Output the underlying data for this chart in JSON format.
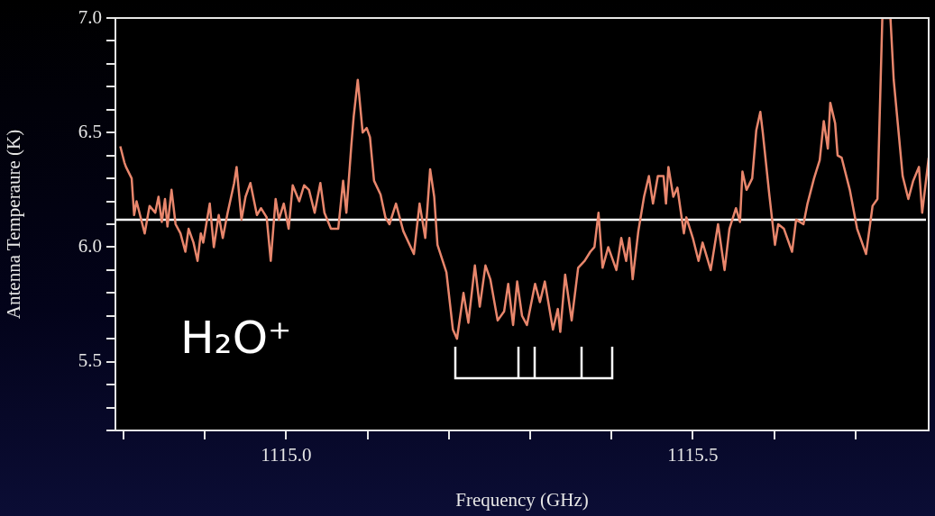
{
  "chart_data": {
    "type": "line",
    "xlabel": "Frequency (GHz)",
    "ylabel": "Antenna Temperaure (K)",
    "annotations": [
      "H₂O⁺"
    ],
    "x": [
      1114.796,
      1114.801,
      1114.803,
      1114.81,
      1114.813,
      1114.816,
      1114.826,
      1114.832,
      1114.839,
      1114.843,
      1114.847,
      1114.851,
      1114.854,
      1114.859,
      1114.864,
      1114.87,
      1114.876,
      1114.88,
      1114.886,
      1114.891,
      1114.895,
      1114.898,
      1114.906,
      1114.911,
      1114.917,
      1114.922,
      1114.928,
      1114.936,
      1114.939,
      1114.945,
      1114.95,
      1114.956,
      1114.964,
      1114.969,
      1114.976,
      1114.981,
      1114.987,
      1114.991,
      1114.997,
      1115.003,
      1115.008,
      1115.016,
      1115.022,
      1115.028,
      1115.035,
      1115.042,
      1115.047,
      1115.055,
      1115.064,
      1115.07,
      1115.074,
      1115.08,
      1115.083,
      1115.088,
      1115.094,
      1115.099,
      1115.103,
      1115.108,
      1115.116,
      1115.122,
      1115.127,
      1115.135,
      1115.144,
      1115.157,
      1115.164,
      1115.171,
      1115.177,
      1115.182,
      1115.186,
      1115.197,
      1115.205,
      1115.21,
      1115.218,
      1115.224,
      1115.232,
      1115.238,
      1115.245,
      1115.251,
      1115.26,
      1115.268,
      1115.273,
      1115.279,
      1115.284,
      1115.29,
      1115.296,
      1115.306,
      1115.312,
      1115.318,
      1115.328,
      1115.334,
      1115.337,
      1115.343,
      1115.351,
      1115.359,
      1115.367,
      1115.374,
      1115.379,
      1115.384,
      1115.389,
      1115.396,
      1115.406,
      1115.412,
      1115.418,
      1115.422,
      1115.426,
      1115.433,
      1115.44,
      1115.446,
      1115.451,
      1115.457,
      1115.464,
      1115.467,
      1115.47,
      1115.476,
      1115.481,
      1115.489,
      1115.492,
      1115.5,
      1115.507,
      1115.512,
      1115.522,
      1115.531,
      1115.539,
      1115.545,
      1115.553,
      1115.558,
      1115.561,
      1115.566,
      1115.573,
      1115.578,
      1115.583,
      1115.586,
      1115.594,
      1115.601,
      1115.605,
      1115.612,
      1115.622,
      1115.627,
      1115.636,
      1115.641,
      1115.649,
      1115.656,
      1115.661,
      1115.666,
      1115.669,
      1115.675,
      1115.678,
      1115.683,
      1115.693,
      1115.702,
      1115.713,
      1115.721,
      1115.727,
      1115.733,
      1115.743,
      1115.747,
      1115.752,
      1115.758,
      1115.765,
      1115.771,
      1115.778,
      1115.782,
      1115.79
    ],
    "series": [
      {
        "color": "#e8866c",
        "values": [
          6.44,
          6.37,
          6.35,
          6.3,
          6.14,
          6.2,
          6.06,
          6.18,
          6.15,
          6.22,
          6.11,
          6.21,
          6.09,
          6.25,
          6.1,
          6.06,
          5.98,
          6.08,
          6.02,
          5.94,
          6.06,
          6.02,
          6.19,
          6.0,
          6.14,
          6.04,
          6.15,
          6.28,
          6.35,
          6.12,
          6.22,
          6.28,
          6.14,
          6.17,
          6.13,
          5.94,
          6.21,
          6.12,
          6.19,
          6.08,
          6.27,
          6.2,
          6.27,
          6.25,
          6.15,
          6.28,
          6.15,
          6.08,
          6.08,
          6.29,
          6.15,
          6.44,
          6.57,
          6.73,
          6.5,
          6.52,
          6.48,
          6.29,
          6.23,
          6.13,
          6.1,
          6.19,
          6.07,
          5.97,
          6.19,
          6.04,
          6.34,
          6.22,
          6.01,
          5.89,
          5.64,
          5.6,
          5.8,
          5.67,
          5.92,
          5.74,
          5.92,
          5.86,
          5.68,
          5.72,
          5.84,
          5.66,
          5.85,
          5.7,
          5.66,
          5.84,
          5.76,
          5.85,
          5.64,
          5.73,
          5.63,
          5.88,
          5.68,
          5.91,
          5.94,
          5.98,
          6.0,
          6.15,
          5.91,
          6.0,
          5.9,
          6.04,
          5.94,
          6.04,
          5.86,
          6.07,
          6.22,
          6.31,
          6.19,
          6.31,
          6.31,
          6.19,
          6.35,
          6.22,
          6.26,
          6.06,
          6.13,
          6.04,
          5.94,
          6.02,
          5.9,
          6.1,
          5.9,
          6.08,
          6.17,
          6.11,
          6.33,
          6.25,
          6.3,
          6.51,
          6.59,
          6.5,
          6.23,
          6.01,
          6.1,
          6.08,
          5.98,
          6.12,
          6.1,
          6.19,
          6.3,
          6.38,
          6.55,
          6.43,
          6.63,
          6.54,
          6.4,
          6.39,
          6.25,
          6.08,
          5.97,
          6.18,
          6.21,
          7.0,
          7.0,
          6.73,
          6.54,
          6.31,
          6.21,
          6.29,
          6.35,
          6.15,
          6.39
        ]
      }
    ],
    "xlim": [
      1114.79,
      1115.79
    ],
    "ylim": [
      5.2,
      7.0
    ],
    "xticks": [
      {
        "value": 1114.8,
        "label": null
      },
      {
        "value": 1114.9,
        "label": null
      },
      {
        "value": 1115,
        "label": "1115.0"
      },
      {
        "value": 1115.1,
        "label": null
      },
      {
        "value": 1115.2,
        "label": null
      },
      {
        "value": 1115.3,
        "label": null
      },
      {
        "value": 1115.4,
        "label": null
      },
      {
        "value": 1115.5,
        "label": "1115.5"
      },
      {
        "value": 1115.6,
        "label": null
      },
      {
        "value": 1115.7,
        "label": null
      }
    ],
    "yticks": [
      {
        "value": 5.2,
        "label": null
      },
      {
        "value": 5.3,
        "label": null
      },
      {
        "value": 5.4,
        "label": null
      },
      5.5,
      {
        "value": 5.6,
        "label": null
      },
      {
        "value": 5.7,
        "label": null
      },
      {
        "value": 5.8,
        "label": null
      },
      {
        "value": 5.9,
        "label": null
      },
      {
        "value": 6,
        "label": "6.0"
      },
      {
        "value": 6.1,
        "label": null
      },
      {
        "value": 6.2,
        "label": null
      },
      {
        "value": 6.3,
        "label": null
      },
      {
        "value": 6.4,
        "label": null
      },
      6.5,
      {
        "value": 6.6,
        "label": null
      },
      {
        "value": 6.7,
        "label": null
      },
      {
        "value": 6.8,
        "label": null
      },
      {
        "value": 6.9,
        "label": null
      },
      {
        "value": 7,
        "label": "7.0"
      }
    ],
    "ref_lines": [
      {
        "axis": "y",
        "value": 6.12,
        "color": "#ffffff"
      }
    ],
    "marker": "none",
    "line_style": "solid",
    "legend": false
  }
}
